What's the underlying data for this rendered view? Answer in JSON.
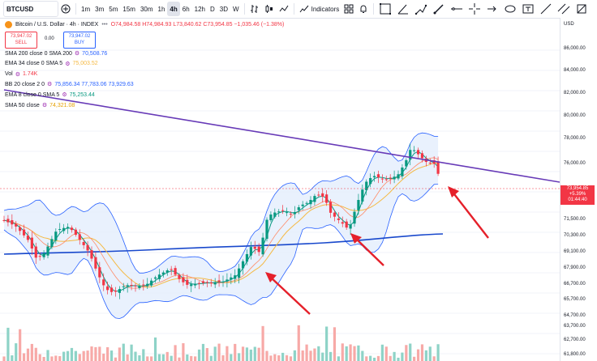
{
  "toolbar": {
    "symbol": "BTCUSD",
    "timeframes": [
      "1m",
      "3m",
      "5m",
      "15m",
      "30m",
      "1h",
      "4h",
      "6h",
      "12h",
      "D",
      "3D",
      "W"
    ],
    "active_timeframe": "4h",
    "indicators_label": "Indicators"
  },
  "legend": {
    "title": "Bitcoin / U.S. Dollar · 4h · INDEX",
    "ohlc": "O74,984.58 H74,984.93 L73,840.62 C73,954.85 −1,035.46 (−1.38%)",
    "sell_price": "73,947.02",
    "sell_label": "SELL",
    "spread": "0.00",
    "buy_price": "73,947.02",
    "buy_label": "BUY",
    "indicators": [
      {
        "label": "SMA 200 close 0 SMA 200",
        "value": "70,508.76",
        "color": "#2962ff"
      },
      {
        "label": "EMA 34 close 0 SMA 5",
        "value": "75,003.52",
        "color": "#f5b942"
      },
      {
        "label": "Vol",
        "value": "1.74K",
        "color": "#f23645"
      },
      {
        "label": "BB 20 close 2 0",
        "value": "75,856.34  77,783.06  73,929.63",
        "color": "#2962ff"
      },
      {
        "label": "EMA 8 close 0 SMA 5",
        "value": "75,253.44",
        "color": "#089981"
      },
      {
        "label": "SMA 50 close",
        "value": "74,321.08",
        "color": "#e6a000"
      }
    ]
  },
  "price_axis": {
    "currency": "USD",
    "labels": [
      "86,000.00",
      "84,000.00",
      "82,000.00",
      "80,000.00",
      "78,000.00",
      "76,000.00",
      "72,500.00",
      "71,500.00",
      "70,300.00",
      "69,100.00",
      "67,900.00",
      "66,700.00",
      "65,700.00",
      "64,700.00",
      "63,700.00",
      "62,700.00",
      "61,800.00"
    ],
    "current_price": "73,954.85",
    "current_change": "+5.39%",
    "countdown": "01:44:40"
  },
  "colors": {
    "up": "#089981",
    "down": "#f23645",
    "trendline": "#673ab7",
    "arrow": "#e5202a",
    "band_fill": "#e3eefc"
  }
}
